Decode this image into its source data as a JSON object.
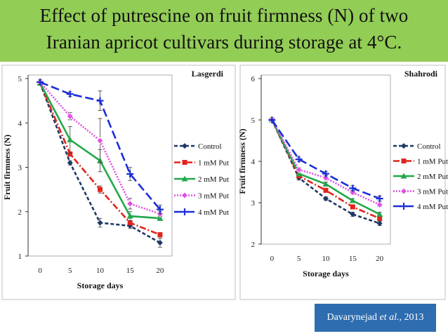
{
  "title": {
    "line1": "Effect of putrescine on fruit firmness (N) of two",
    "line2": "Iranian apricot cultivars during storage at 4°C."
  },
  "citation": {
    "author": "Davarynejad",
    "etal": "et al.",
    "year": ", 2013"
  },
  "colors": {
    "banner": "#92cd56",
    "citation_bg": "#2e6db0",
    "Control": "#1f3864",
    "1 mM Put": "#e0241b",
    "2 mM Put": "#22a84a",
    "3 mM Put": "#e14fe3",
    "4 mM Put": "#1c2fd9"
  },
  "chart_data": [
    {
      "type": "line",
      "title": "Lasgerdi",
      "xlabel": "Storage days",
      "ylabel": "Fruit firmness (N)",
      "x": [
        0,
        5,
        10,
        15,
        20
      ],
      "xlim": [
        -2,
        22
      ],
      "ylim": [
        1,
        5
      ],
      "yticks": [
        1,
        2,
        3,
        4,
        5
      ],
      "grid": false,
      "legend": "right",
      "series": [
        {
          "name": "Control",
          "values": [
            4.9,
            3.1,
            1.75,
            1.68,
            1.3
          ],
          "err": [
            0.05,
            0.05,
            0.1,
            0.06,
            0.1
          ]
        },
        {
          "name": "1 mM Put",
          "values": [
            4.9,
            3.3,
            2.5,
            1.75,
            1.48
          ],
          "err": [
            0.05,
            0.05,
            0.08,
            0.05,
            0.05
          ]
        },
        {
          "name": "2 mM Put",
          "values": [
            4.9,
            3.62,
            3.15,
            1.9,
            1.85
          ],
          "err": [
            0.05,
            0.3,
            0.25,
            0.1,
            0.05
          ]
        },
        {
          "name": "3 mM Put",
          "values": [
            4.92,
            4.15,
            3.6,
            2.18,
            1.95
          ],
          "err": [
            0.05,
            0.08,
            0.5,
            0.12,
            0.06
          ]
        },
        {
          "name": "4 mM Put",
          "values": [
            4.92,
            4.65,
            4.5,
            2.85,
            2.05
          ],
          "err": [
            0.05,
            0.05,
            0.22,
            0.15,
            0.1
          ]
        }
      ]
    },
    {
      "type": "line",
      "title": "Shahrodi",
      "xlabel": "Storage days",
      "ylabel": "Fruit firmness (N)",
      "x": [
        0,
        5,
        10,
        15,
        20
      ],
      "xlim": [
        -2,
        22
      ],
      "ylim": [
        2,
        6
      ],
      "yticks": [
        2,
        3,
        4,
        5,
        6
      ],
      "grid": false,
      "legend": "right",
      "series": [
        {
          "name": "Control",
          "values": [
            5.0,
            3.6,
            3.1,
            2.72,
            2.5
          ],
          "err": [
            0.02,
            0.05,
            0.04,
            0.05,
            0.05
          ]
        },
        {
          "name": "1 mM Put",
          "values": [
            5.0,
            3.65,
            3.3,
            2.9,
            2.62
          ],
          "err": [
            0.02,
            0.05,
            0.05,
            0.05,
            0.05
          ]
        },
        {
          "name": "2 mM Put",
          "values": [
            5.0,
            3.7,
            3.45,
            3.05,
            2.72
          ],
          "err": [
            0.02,
            0.05,
            0.05,
            0.05,
            0.05
          ]
        },
        {
          "name": "3 mM Put",
          "values": [
            5.0,
            3.8,
            3.6,
            3.25,
            2.95
          ],
          "err": [
            0.02,
            0.05,
            0.05,
            0.05,
            0.05
          ]
        },
        {
          "name": "4 mM Put",
          "values": [
            5.0,
            4.05,
            3.7,
            3.35,
            3.1
          ],
          "err": [
            0.02,
            0.05,
            0.05,
            0.06,
            0.06
          ]
        }
      ]
    }
  ]
}
